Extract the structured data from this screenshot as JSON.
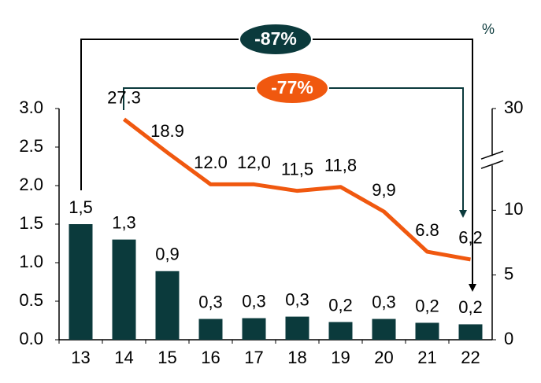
{
  "chart_data": {
    "type": "bar_line",
    "unit_label": "%",
    "annotations": [
      "-87%",
      "-77%"
    ],
    "categories": [
      "13",
      "14",
      "15",
      "16",
      "17",
      "18",
      "19",
      "20",
      "21",
      "22"
    ],
    "series": [
      {
        "type": "bar",
        "color": "#0b3a3c",
        "values": [
          1.5,
          1.3,
          0.89,
          0.27,
          0.28,
          0.3,
          0.23,
          0.27,
          0.22,
          0.2
        ],
        "value_labels": [
          "1,5",
          "1,3",
          "0,9",
          "0,3",
          "0,3",
          "0,3",
          "0,2",
          "0,3",
          "0,2",
          "0,2"
        ]
      },
      {
        "type": "line",
        "axis": "y2",
        "color": "#f0580f",
        "values": [
          null,
          27.3,
          18.9,
          12.0,
          12.0,
          11.5,
          11.8,
          9.9,
          6.8,
          6.2
        ],
        "value_labels": [
          null,
          "27.3",
          "18.9",
          "12.0",
          "12,0",
          "11,5",
          "11,8",
          "9,9",
          "6.8",
          "6,2"
        ]
      }
    ],
    "ylim": [
      0,
      3
    ],
    "yticks": [
      {
        "value": 0,
        "label": "0.0"
      },
      0.5,
      {
        "value": 1,
        "label": "1.0"
      },
      1.5,
      {
        "value": 2,
        "label": "2.0"
      },
      2.5,
      {
        "value": 3,
        "label": "3.0"
      }
    ],
    "y2lim": [
      0,
      30
    ],
    "y2ticks": [
      0,
      5,
      10,
      30
    ],
    "y2_break_at": 12.5
  }
}
